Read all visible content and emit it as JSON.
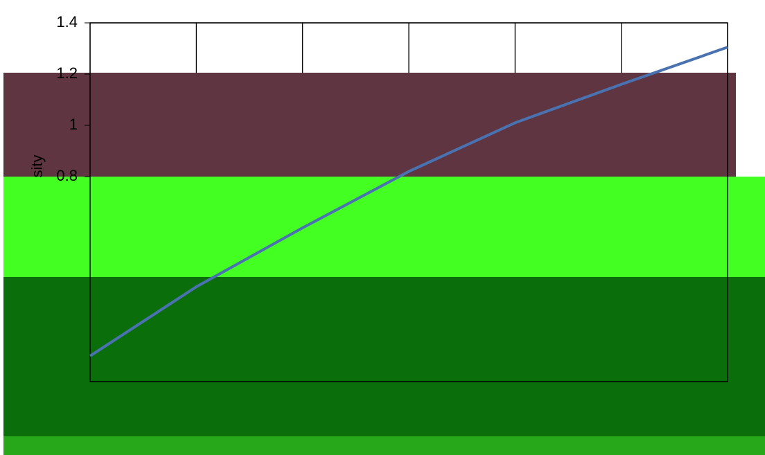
{
  "chart_data": {
    "type": "line",
    "y_label": "sity",
    "x": [
      0,
      1,
      2,
      3,
      4,
      5,
      6
    ],
    "xlim": [
      0,
      6
    ],
    "series": [
      {
        "color": "#4a72b0",
        "values": [
          0.1,
          0.37,
          0.6,
          0.82,
          1.01,
          1.16,
          1.305
        ]
      }
    ],
    "ylim": [
      0,
      1.4
    ],
    "yticks": [
      0.8,
      1,
      1.2,
      1.4
    ],
    "grid": true
  }
}
